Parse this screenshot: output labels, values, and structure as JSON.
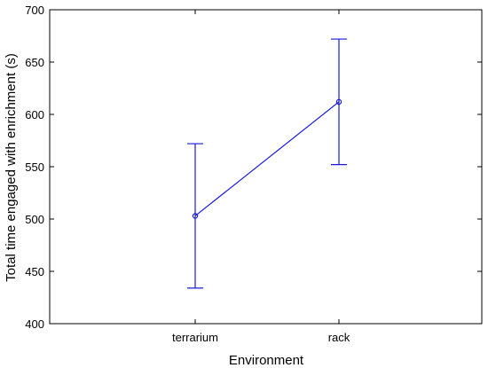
{
  "chart_data": {
    "type": "line",
    "title": "",
    "xlabel": "Environment",
    "ylabel": "Total time engaged with enrichment (s)",
    "categories": [
      "terrarium",
      "rack"
    ],
    "series": [
      {
        "values": [
          503,
          612
        ],
        "error_low": [
          434,
          552
        ],
        "error_high": [
          572,
          672
        ]
      }
    ],
    "ylim": [
      400,
      700
    ],
    "yticks": [
      400,
      450,
      500,
      550,
      600,
      650,
      700
    ],
    "grid": false,
    "legend": "none"
  },
  "colors": {
    "series": "#1a1adf",
    "axis": "#000000",
    "background": "#ffffff"
  }
}
